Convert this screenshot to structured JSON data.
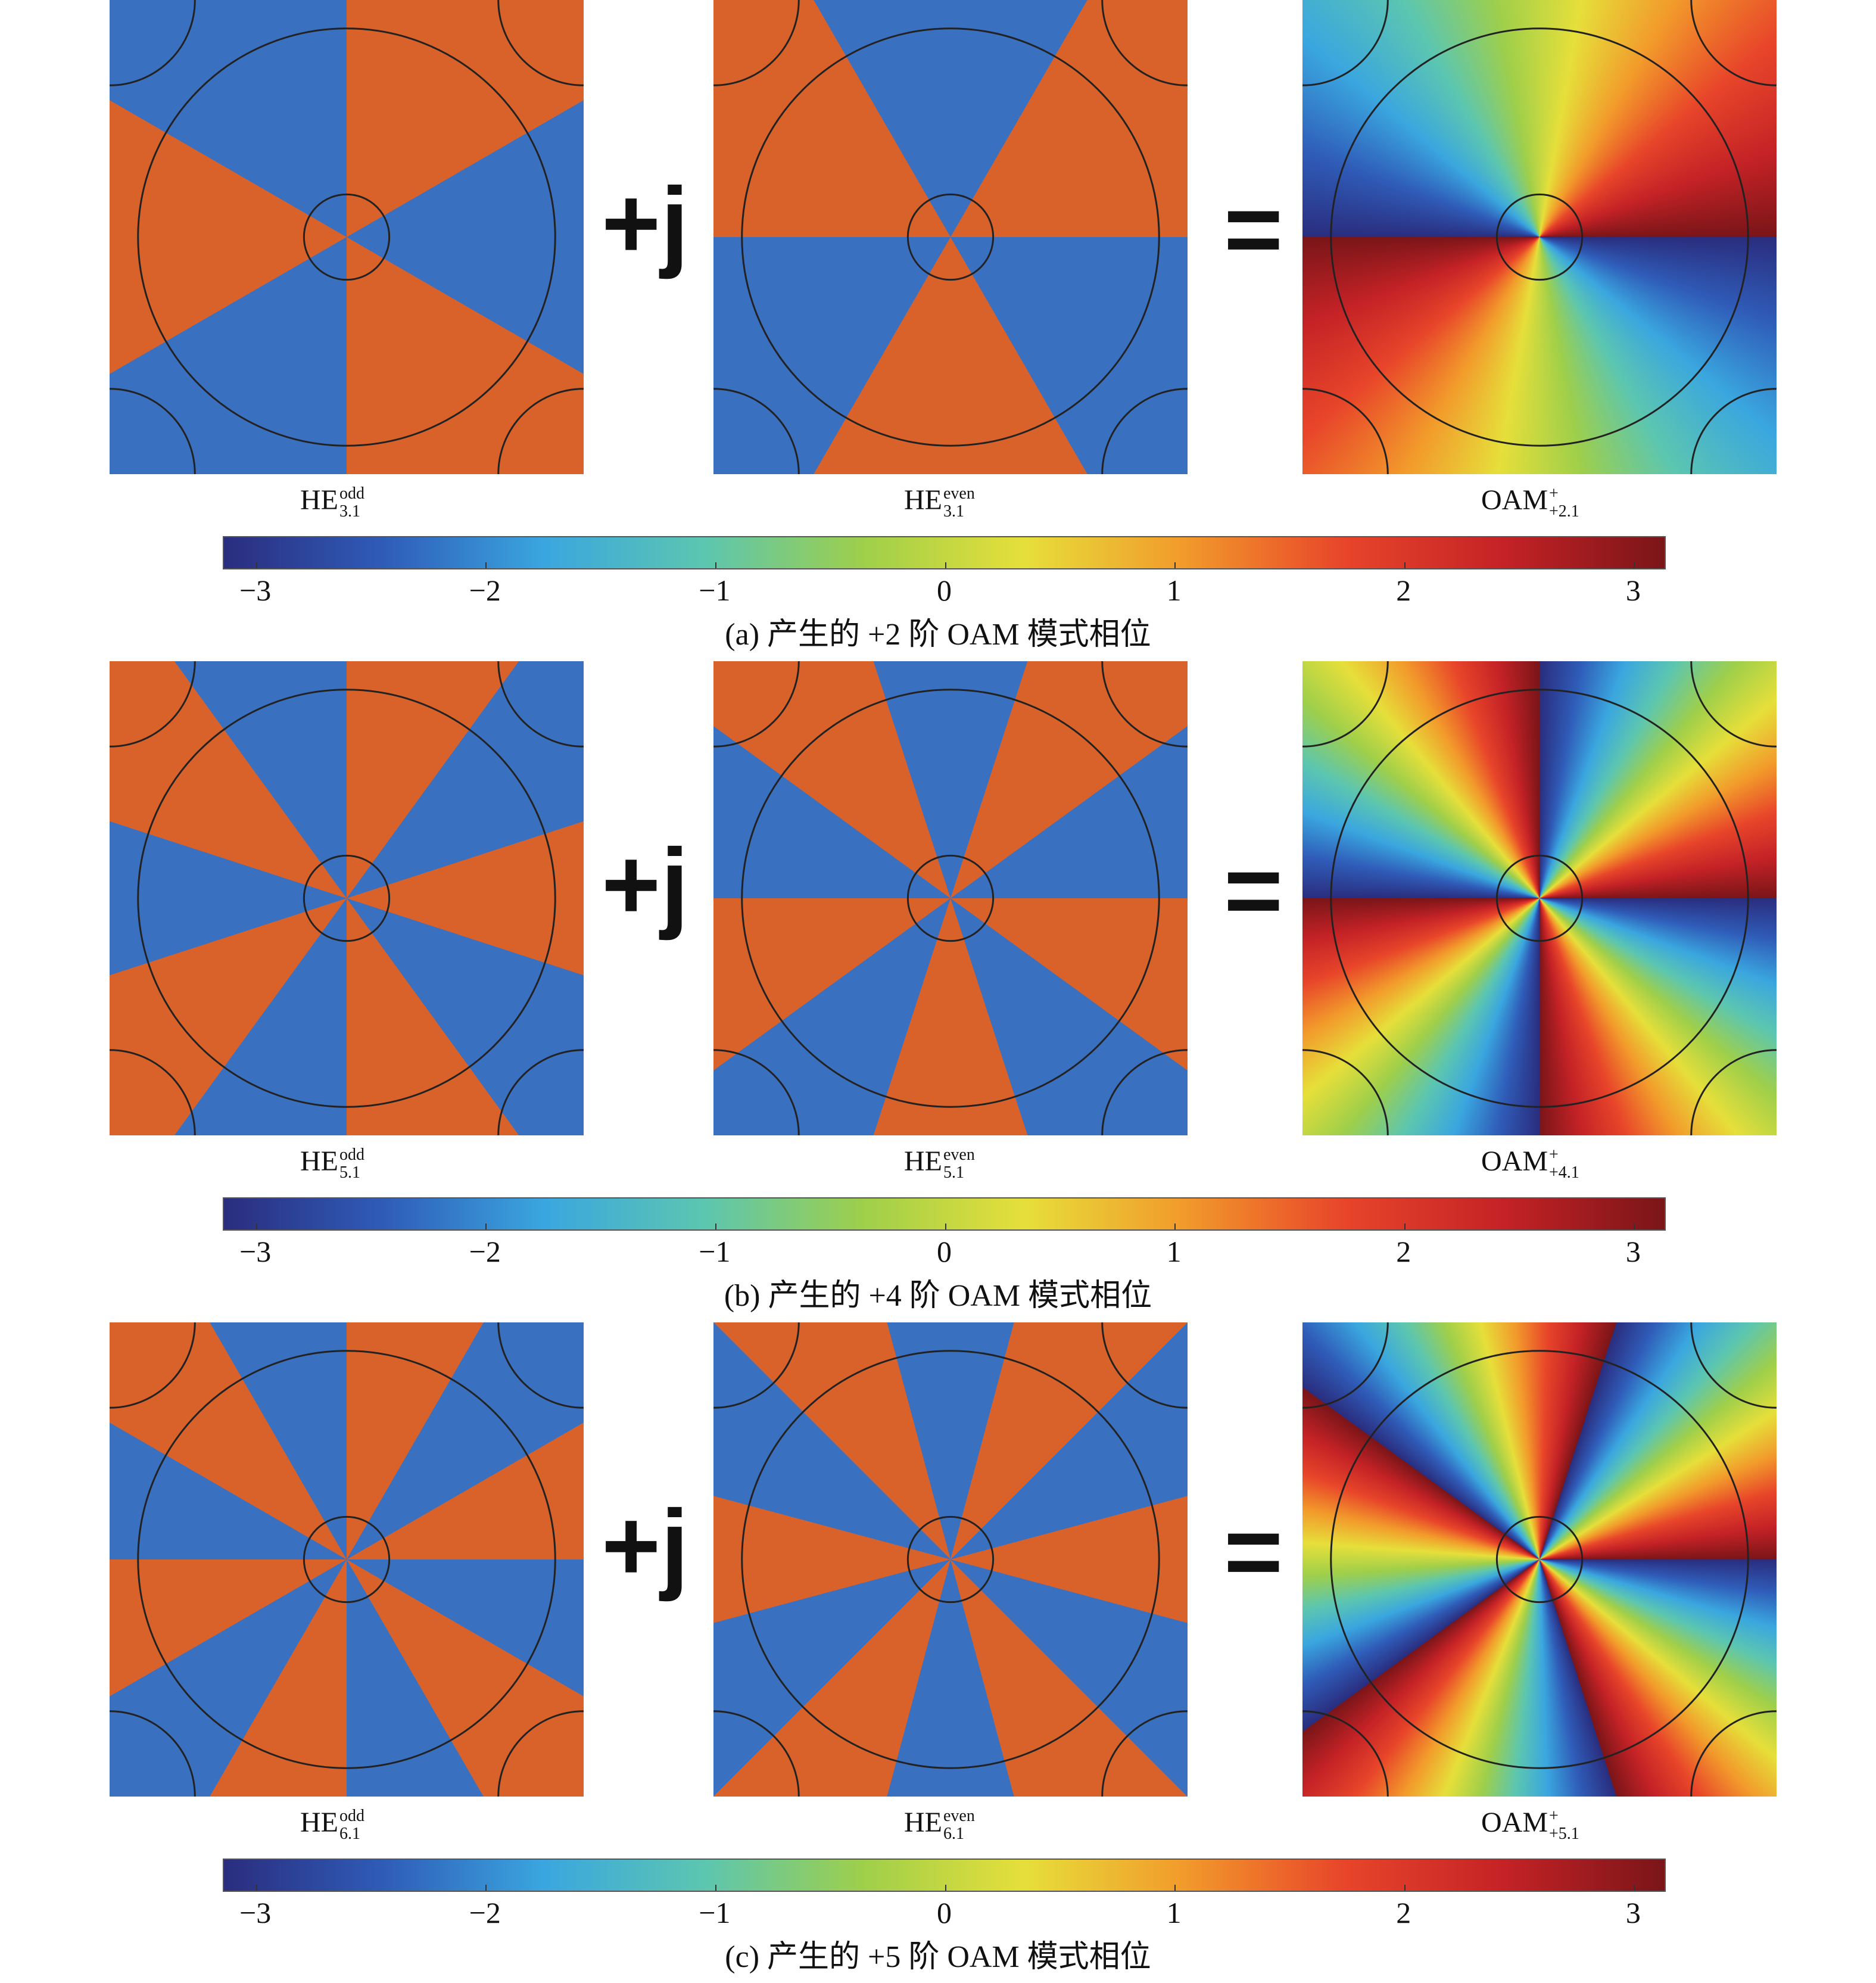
{
  "rows": [
    {
      "panels": [
        {
          "base": "HE",
          "sup": "odd",
          "sub": "3.1"
        },
        {
          "base": "HE",
          "sup": "even",
          "sub": "3.1"
        },
        {
          "base": "OAM",
          "sup": "+",
          "sub": "+2.1"
        }
      ],
      "plus": "+j",
      "equals": "=",
      "colorbar": {
        "lim": [
          -3.1416,
          3.1416
        ],
        "ticks": [
          {
            "value": -3,
            "label": "−3"
          },
          {
            "value": -2,
            "label": "−2"
          },
          {
            "value": -1,
            "label": "−1"
          },
          0,
          1,
          2,
          3
        ]
      },
      "caption": "(a) 产生的 +2 阶 OAM 模式相位"
    },
    {
      "panels": [
        {
          "base": "HE",
          "sup": "odd",
          "sub": "5.1"
        },
        {
          "base": "HE",
          "sup": "even",
          "sub": "5.1"
        },
        {
          "base": "OAM",
          "sup": "+",
          "sub": "+4.1"
        }
      ],
      "plus": "+j",
      "equals": "=",
      "colorbar": {
        "lim": [
          -3.1416,
          3.1416
        ],
        "ticks": [
          {
            "value": -3,
            "label": "−3"
          },
          {
            "value": -2,
            "label": "−2"
          },
          {
            "value": -1,
            "label": "−1"
          },
          0,
          1,
          2,
          3
        ]
      },
      "caption": "(b) 产生的 +4 阶 OAM 模式相位"
    },
    {
      "panels": [
        {
          "base": "HE",
          "sup": "odd",
          "sub": "6.1"
        },
        {
          "base": "HE",
          "sup": "even",
          "sub": "6.1"
        },
        {
          "base": "OAM",
          "sup": "+",
          "sub": "+5.1"
        }
      ],
      "plus": "+j",
      "equals": "=",
      "colorbar": {
        "lim": [
          -3.1416,
          3.1416
        ],
        "ticks": [
          {
            "value": -3,
            "label": "−3"
          },
          {
            "value": -2,
            "label": "−2"
          },
          {
            "value": -1,
            "label": "−1"
          },
          0,
          1,
          2,
          3
        ]
      },
      "caption": "(c) 产生的 +5 阶 OAM 模式相位"
    }
  ]
}
